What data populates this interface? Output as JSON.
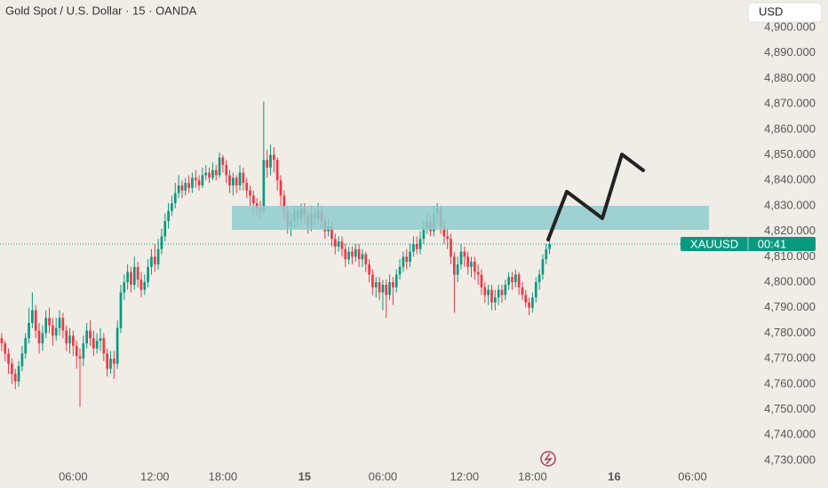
{
  "chart_data": {
    "type": "candlestick",
    "title": "Gold Spot / U.S. Dollar · 15 · OANDA",
    "currency": "USD",
    "symbol": "XAUUSD",
    "countdown": "00:41",
    "up_color": "#089981",
    "down_color": "#f23645",
    "ylim": [
      4727.2,
      4910.8
    ],
    "xlim": [
      -0.5,
      217.5
    ],
    "yticks": [
      {
        "value": 4730,
        "label": "4,730.000"
      },
      {
        "value": 4740,
        "label": "4,740.000"
      },
      {
        "value": 4750,
        "label": "4,750.000"
      },
      {
        "value": 4760,
        "label": "4,760.000"
      },
      {
        "value": 4770,
        "label": "4,770.000"
      },
      {
        "value": 4780,
        "label": "4,780.000"
      },
      {
        "value": 4790,
        "label": "4,790.000"
      },
      {
        "value": 4800,
        "label": "4,800.000"
      },
      {
        "value": 4810,
        "label": "4,810.000"
      },
      {
        "value": 4820,
        "label": "4,820.000"
      },
      {
        "value": 4830,
        "label": "4,830.000"
      },
      {
        "value": 4840,
        "label": "4,840.000"
      },
      {
        "value": 4850,
        "label": "4,850.000"
      },
      {
        "value": 4860,
        "label": "4,860.000"
      },
      {
        "value": 4870,
        "label": "4,870.000"
      },
      {
        "value": 4880,
        "label": "4,880.000"
      },
      {
        "value": 4890,
        "label": "4,890.000"
      },
      {
        "value": 4900,
        "label": "4,900.000"
      }
    ],
    "xticks": [
      {
        "value": 21,
        "label": "06:00"
      },
      {
        "value": 45,
        "label": "12:00"
      },
      {
        "value": 65,
        "label": "18:00"
      },
      {
        "value": 89,
        "label": "15"
      },
      {
        "value": 112,
        "label": "06:00"
      },
      {
        "value": 136,
        "label": "12:00"
      },
      {
        "value": 156,
        "label": "18:00"
      },
      {
        "value": 180,
        "label": "16"
      },
      {
        "value": 203,
        "label": "06:00"
      }
    ],
    "open": [
      4778,
      4776,
      4772,
      4768,
      4764,
      4761,
      4767,
      4772,
      4778,
      4784,
      4789,
      4781,
      4776,
      4780,
      4786,
      4783,
      4779,
      4782,
      4786,
      4781,
      4776,
      4779,
      4775,
      4771,
      4770,
      4776,
      4781,
      4778,
      4774,
      4777,
      4778,
      4772,
      4766,
      4770,
      4768,
      4782,
      4796,
      4800,
      4804,
      4799,
      4806,
      4801,
      4797,
      4800,
      4806,
      4810,
      4807,
      4813,
      4818,
      4824,
      4828,
      4831,
      4835,
      4838,
      4836,
      4839,
      4837,
      4841,
      4840,
      4838,
      4842,
      4843,
      4841,
      4844,
      4842,
      4849,
      4846,
      4842,
      4838,
      4841,
      4838,
      4843,
      4839,
      4836,
      4834,
      4831,
      4829,
      4828,
      4848,
      4845,
      4850,
      4848,
      4840,
      4834,
      4828,
      4822,
      4824,
      4828,
      4825,
      4829,
      4826,
      4822,
      4827,
      4825,
      4828,
      4824,
      4820,
      4822,
      4817,
      4814,
      4816,
      4813,
      4809,
      4812,
      4810,
      4813,
      4809,
      4811,
      4807,
      4803,
      4798,
      4800,
      4796,
      4799,
      4795,
      4800,
      4798,
      4803,
      4806,
      4810,
      4808,
      4812,
      4815,
      4813,
      4817,
      4821,
      4824,
      4820,
      4827,
      4829,
      4822,
      4818,
      4817,
      4810,
      4803,
      4807,
      4812,
      4810,
      4806,
      4808,
      4804,
      4803,
      4798,
      4795,
      4797,
      4792,
      4794,
      4797,
      4795,
      4799,
      4802,
      4800,
      4803,
      4798,
      4795,
      4792,
      4790,
      4794,
      4800,
      4803,
      4809,
      4813
    ],
    "high": [
      4780,
      4777,
      4774,
      4770,
      4766,
      4769,
      4775,
      4780,
      4790,
      4796,
      4791,
      4784,
      4783,
      4789,
      4790,
      4786,
      4786,
      4789,
      4788,
      4783,
      4782,
      4781,
      4777,
      4774,
      4779,
      4784,
      4785,
      4781,
      4780,
      4782,
      4780,
      4774,
      4773,
      4773,
      4785,
      4799,
      4803,
      4807,
      4806,
      4810,
      4808,
      4804,
      4803,
      4809,
      4813,
      4815,
      4817,
      4821,
      4827,
      4831,
      4834,
      4839,
      4842,
      4840,
      4841,
      4842,
      4843,
      4844,
      4842,
      4845,
      4846,
      4845,
      4847,
      4846,
      4851,
      4850,
      4848,
      4844,
      4843,
      4842,
      4846,
      4845,
      4841,
      4838,
      4836,
      4833,
      4832,
      4871,
      4852,
      4854,
      4853,
      4849,
      4842,
      4836,
      4830,
      4827,
      4830,
      4830,
      4831,
      4831,
      4828,
      4830,
      4829,
      4831,
      4830,
      4826,
      4825,
      4824,
      4819,
      4818,
      4818,
      4815,
      4814,
      4814,
      4815,
      4815,
      4813,
      4812,
      4809,
      4805,
      4802,
      4802,
      4801,
      4801,
      4803,
      4802,
      4805,
      4809,
      4812,
      4813,
      4815,
      4818,
      4818,
      4820,
      4824,
      4827,
      4826,
      4830,
      4831,
      4830,
      4824,
      4821,
      4819,
      4812,
      4810,
      4815,
      4814,
      4812,
      4810,
      4810,
      4807,
      4805,
      4800,
      4799,
      4799,
      4797,
      4799,
      4799,
      4801,
      4804,
      4804,
      4805,
      4804,
      4800,
      4797,
      4794,
      4796,
      4802,
      4805,
      4811,
      4815,
      4817
    ],
    "low": [
      4773,
      4769,
      4764,
      4760,
      4758,
      4759,
      4765,
      4770,
      4776,
      4782,
      4778,
      4772,
      4773,
      4778,
      4780,
      4775,
      4777,
      4779,
      4778,
      4773,
      4772,
      4771,
      4766,
      4751,
      4767,
      4774,
      4775,
      4771,
      4772,
      4773,
      4769,
      4763,
      4764,
      4762,
      4766,
      4780,
      4793,
      4797,
      4796,
      4797,
      4798,
      4794,
      4795,
      4798,
      4803,
      4804,
      4805,
      4811,
      4816,
      4821,
      4826,
      4829,
      4833,
      4833,
      4834,
      4835,
      4835,
      4837,
      4836,
      4837,
      4840,
      4839,
      4840,
      4840,
      4841,
      4843,
      4839,
      4835,
      4834,
      4835,
      4836,
      4836,
      4833,
      4830,
      4827,
      4826,
      4825,
      4827,
      4841,
      4842,
      4843,
      4836,
      4830,
      4824,
      4819,
      4818,
      4821,
      4822,
      4823,
      4823,
      4819,
      4820,
      4822,
      4823,
      4821,
      4817,
      4818,
      4814,
      4811,
      4812,
      4810,
      4806,
      4807,
      4807,
      4808,
      4806,
      4806,
      4804,
      4800,
      4795,
      4794,
      4793,
      4789,
      4786,
      4793,
      4791,
      4796,
      4801,
      4804,
      4805,
      4806,
      4810,
      4811,
      4811,
      4815,
      4819,
      4818,
      4818,
      4823,
      4819,
      4815,
      4813,
      4807,
      4788,
      4800,
      4805,
      4806,
      4803,
      4802,
      4801,
      4799,
      4795,
      4792,
      4791,
      4789,
      4789,
      4791,
      4792,
      4793,
      4797,
      4797,
      4798,
      4795,
      4793,
      4790,
      4787,
      4788,
      4792,
      4797,
      4801,
      4807,
      4811
    ],
    "close": [
      4776,
      4772,
      4768,
      4764,
      4761,
      4767,
      4772,
      4778,
      4784,
      4789,
      4781,
      4776,
      4780,
      4786,
      4783,
      4779,
      4782,
      4786,
      4781,
      4776,
      4779,
      4775,
      4771,
      4770,
      4776,
      4781,
      4778,
      4774,
      4777,
      4778,
      4772,
      4766,
      4770,
      4768,
      4782,
      4796,
      4800,
      4804,
      4799,
      4806,
      4801,
      4797,
      4800,
      4806,
      4810,
      4807,
      4813,
      4818,
      4824,
      4828,
      4831,
      4835,
      4838,
      4836,
      4839,
      4837,
      4841,
      4840,
      4838,
      4842,
      4843,
      4841,
      4844,
      4842,
      4849,
      4846,
      4842,
      4838,
      4841,
      4838,
      4843,
      4839,
      4836,
      4834,
      4831,
      4829,
      4828,
      4848,
      4845,
      4850,
      4848,
      4840,
      4834,
      4828,
      4822,
      4824,
      4828,
      4825,
      4829,
      4826,
      4822,
      4827,
      4825,
      4828,
      4824,
      4820,
      4822,
      4817,
      4814,
      4816,
      4813,
      4809,
      4812,
      4810,
      4813,
      4809,
      4811,
      4807,
      4803,
      4798,
      4800,
      4796,
      4799,
      4795,
      4800,
      4798,
      4803,
      4806,
      4810,
      4808,
      4812,
      4815,
      4813,
      4817,
      4821,
      4824,
      4820,
      4827,
      4829,
      4822,
      4818,
      4817,
      4810,
      4803,
      4807,
      4812,
      4810,
      4806,
      4808,
      4804,
      4803,
      4798,
      4795,
      4797,
      4792,
      4794,
      4797,
      4795,
      4799,
      4802,
      4800,
      4803,
      4798,
      4795,
      4792,
      4790,
      4794,
      4800,
      4803,
      4809,
      4813,
      4815
    ]
  }
}
